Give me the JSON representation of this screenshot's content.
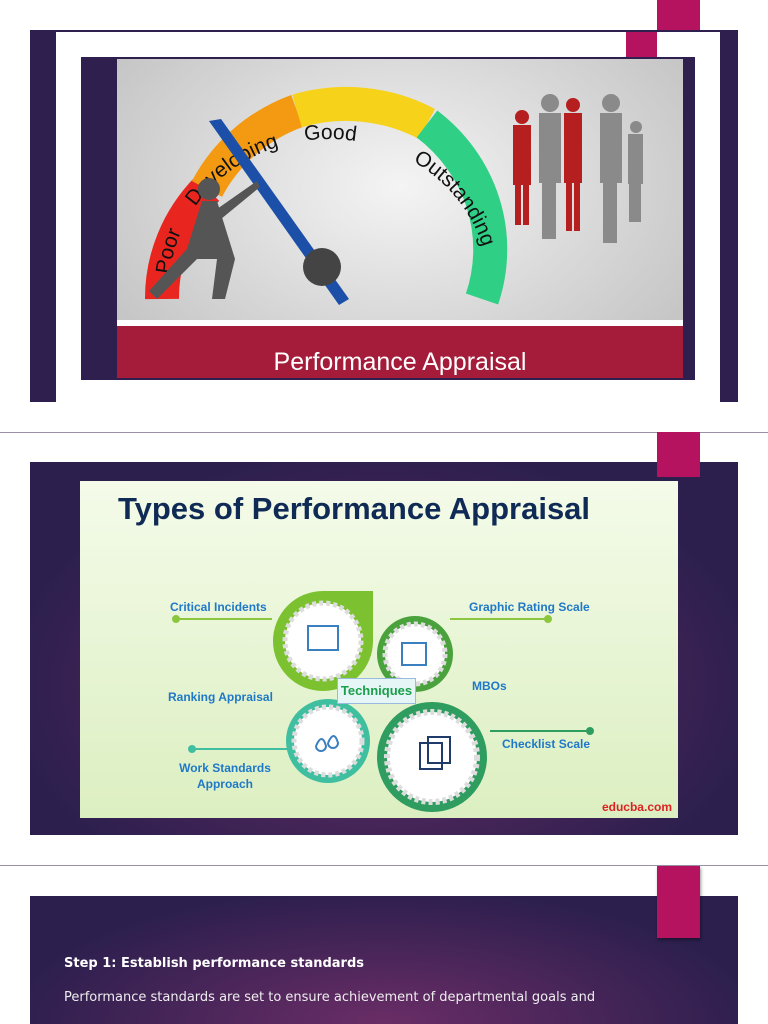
{
  "slide1": {
    "gauge_labels": [
      "Poor",
      "Developing",
      "Good",
      "Outstanding"
    ],
    "banner_title": "Performance Appraisal"
  },
  "slide2": {
    "title": "Types of Performance Appraisal",
    "center_label": "Techniques",
    "techniques": [
      "Critical Incidents",
      "Graphic Rating Scale",
      "Ranking Appraisal",
      "MBOs",
      "Work Standards Approach",
      "Checklist Scale"
    ],
    "brand": "educba.com"
  },
  "slide3": {
    "heading": "Step 1: Establish performance standards",
    "body": "Performance standards are set to ensure achievement of departmental goals and"
  },
  "colors": {
    "accent": "#b5135f",
    "slide_dark": "#2e1f4f",
    "banner": "#a51c3b"
  }
}
